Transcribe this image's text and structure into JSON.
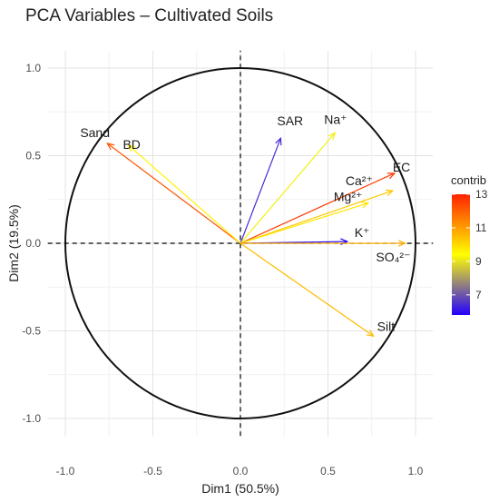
{
  "chart_data": {
    "type": "scatter",
    "subtype": "pca-variable-correlation-circle",
    "title": "PCA Variables – Cultivated Soils",
    "xlabel": "Dim1 (50.5%)",
    "ylabel": "Dim2 (19.5%)",
    "xlim": [
      -1.1,
      1.1
    ],
    "ylim": [
      -1.1,
      1.1
    ],
    "x_ticks": [
      "-1.0",
      "-0.5",
      "0.0",
      "0.5",
      "1.0"
    ],
    "y_ticks": [
      "-1.0",
      "-0.5",
      "0.0",
      "0.5",
      "1.0"
    ],
    "grid": true,
    "unit_circle": true,
    "variables": [
      {
        "name": "Sand",
        "x": -0.76,
        "y": 0.57,
        "contrib": 12.2
      },
      {
        "name": "BD",
        "x": -0.64,
        "y": 0.56,
        "contrib": 9.6
      },
      {
        "name": "SAR",
        "x": 0.23,
        "y": 0.6,
        "contrib": 6.4
      },
      {
        "name": "Na⁺",
        "x": 0.54,
        "y": 0.63,
        "contrib": 9.2
      },
      {
        "name": "EC",
        "x": 0.88,
        "y": 0.4,
        "contrib": 12.6
      },
      {
        "name": "Ca²⁺",
        "x": 0.87,
        "y": 0.3,
        "contrib": 10.3
      },
      {
        "name": "Mg²⁺",
        "x": 0.73,
        "y": 0.23,
        "contrib": 9.8
      },
      {
        "name": "K⁺",
        "x": 0.61,
        "y": 0.01,
        "contrib": 5.8
      },
      {
        "name": "SO₄²⁻",
        "x": 0.94,
        "y": 0.0,
        "contrib": 10.7
      },
      {
        "name": "Silt",
        "x": 0.76,
        "y": -0.53,
        "contrib": 10.5
      }
    ],
    "legend": {
      "title": "contrib",
      "placement": "right",
      "min": 5.8,
      "max": 13.0,
      "ticks": [
        "7",
        "9",
        "11",
        "13"
      ],
      "colors": [
        "#2200ff",
        "#ffff00",
        "#ff2200"
      ]
    }
  }
}
